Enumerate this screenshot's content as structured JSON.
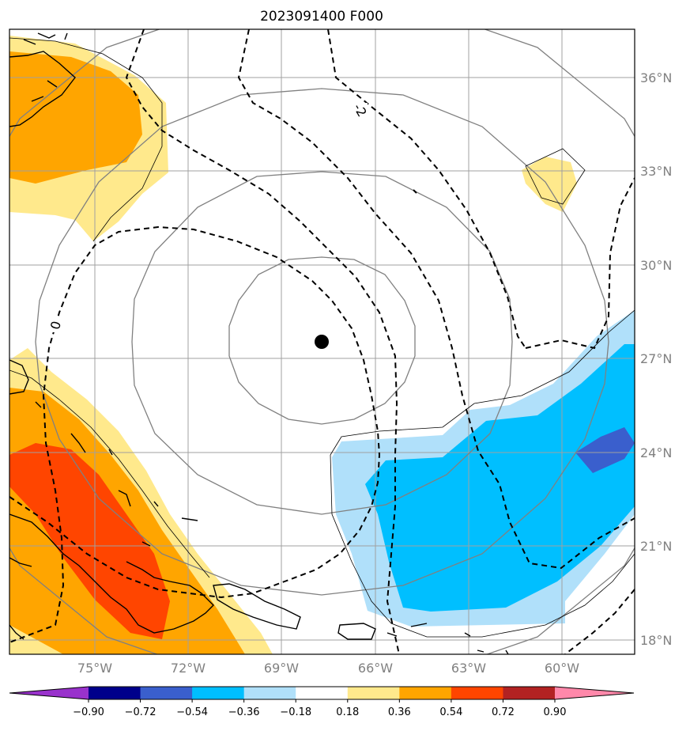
{
  "map": {
    "title": "2023091400 F000",
    "projection": "PlateCarree",
    "extent": {
      "lon_min": -77.7,
      "lon_max": -57.6,
      "lat_min": 17.5,
      "lat_max": 37.5
    },
    "lon_ticks": [
      {
        "value": -75,
        "label": "75°W"
      },
      {
        "value": -72,
        "label": "72°W"
      },
      {
        "value": -69,
        "label": "69°W"
      },
      {
        "value": -66,
        "label": "66°W"
      },
      {
        "value": -63,
        "label": "63°W"
      },
      {
        "value": -60,
        "label": "60°W"
      }
    ],
    "lat_ticks": [
      {
        "value": 36,
        "label": "36°N"
      },
      {
        "value": 33,
        "label": "33°N"
      },
      {
        "value": 30,
        "label": "30°N"
      },
      {
        "value": 27,
        "label": "27°N"
      },
      {
        "value": 24,
        "label": "24°N"
      },
      {
        "value": 21,
        "label": "21°N"
      },
      {
        "value": 18,
        "label": "18°N"
      }
    ],
    "gridlines": true,
    "storm_center": {
      "lon": -67.7,
      "lat": 27.5
    },
    "contour_labels": [
      {
        "text": "0",
        "lon": -76.5,
        "lat": 28.0
      },
      {
        "text": "-2",
        "lon": -66.4,
        "lat": 35.0
      }
    ],
    "colors": {
      "grid": "#a0a0a0",
      "circle": "#808080",
      "coast": "#000000",
      "marker": "#000000"
    }
  },
  "colorbar": {
    "levels": [
      "−0.90",
      "−0.72",
      "−0.54",
      "−0.36",
      "−0.18",
      "0.18",
      "0.36",
      "0.54",
      "0.72",
      "0.90"
    ],
    "colors": [
      "#9932cc",
      "#00008b",
      "#3a5fcd",
      "#00bfff",
      "#b0e0fa",
      "#ffffff",
      "#ffe98c",
      "#ffa500",
      "#ff4500",
      "#b22222",
      "#ff88aa"
    ],
    "extend": "both"
  }
}
